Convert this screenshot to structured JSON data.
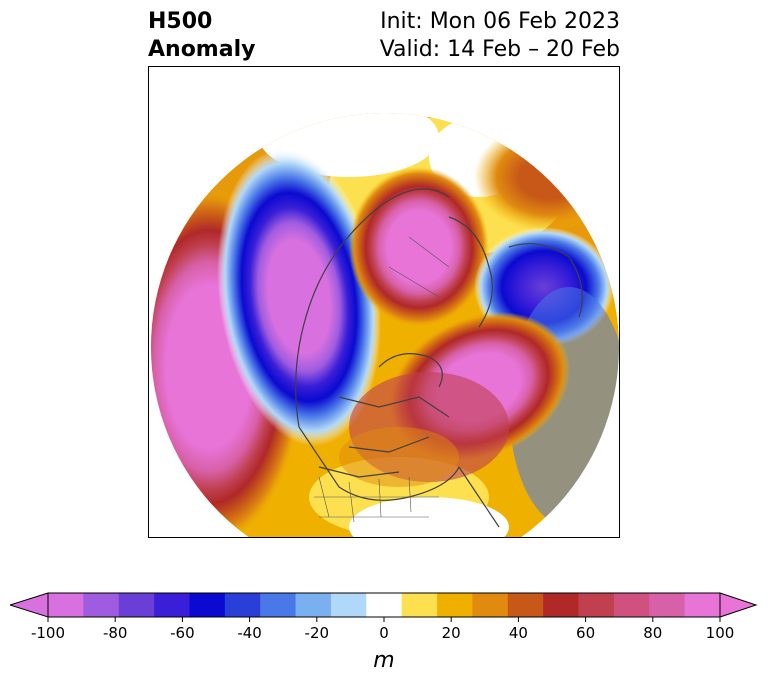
{
  "title": {
    "left_line1": "H500",
    "left_line2": "Anomaly",
    "right_line1": "Init: Mon 06 Feb 2023",
    "right_line2": "Valid: 14 Feb – 20 Feb"
  },
  "colorbar": {
    "units": "m",
    "levels": [
      -100,
      -90,
      -80,
      -70,
      -60,
      -50,
      -40,
      -30,
      -20,
      -10,
      10,
      20,
      30,
      40,
      50,
      60,
      70,
      80,
      90,
      100
    ],
    "colors": [
      "#d870e0",
      "#a05ce0",
      "#6a3fd8",
      "#3a1fd8",
      "#0a0ad0",
      "#2a3fd8",
      "#4a78e8",
      "#7ab0f0",
      "#b0d8f8",
      "#ffffff",
      "#fde050",
      "#f0b000",
      "#e08a10",
      "#c85818",
      "#b02828",
      "#c04050",
      "#d05080",
      "#d860a8",
      "#e874d8"
    ],
    "tick_labels": [
      "-100",
      "-80",
      "-60",
      "-40",
      "-20",
      "0",
      "20",
      "40",
      "60",
      "80",
      "100"
    ]
  },
  "map": {
    "projection": "north-polar-stereographic",
    "features": [
      "coastlines",
      "country-borders",
      "us-state-borders"
    ]
  }
}
